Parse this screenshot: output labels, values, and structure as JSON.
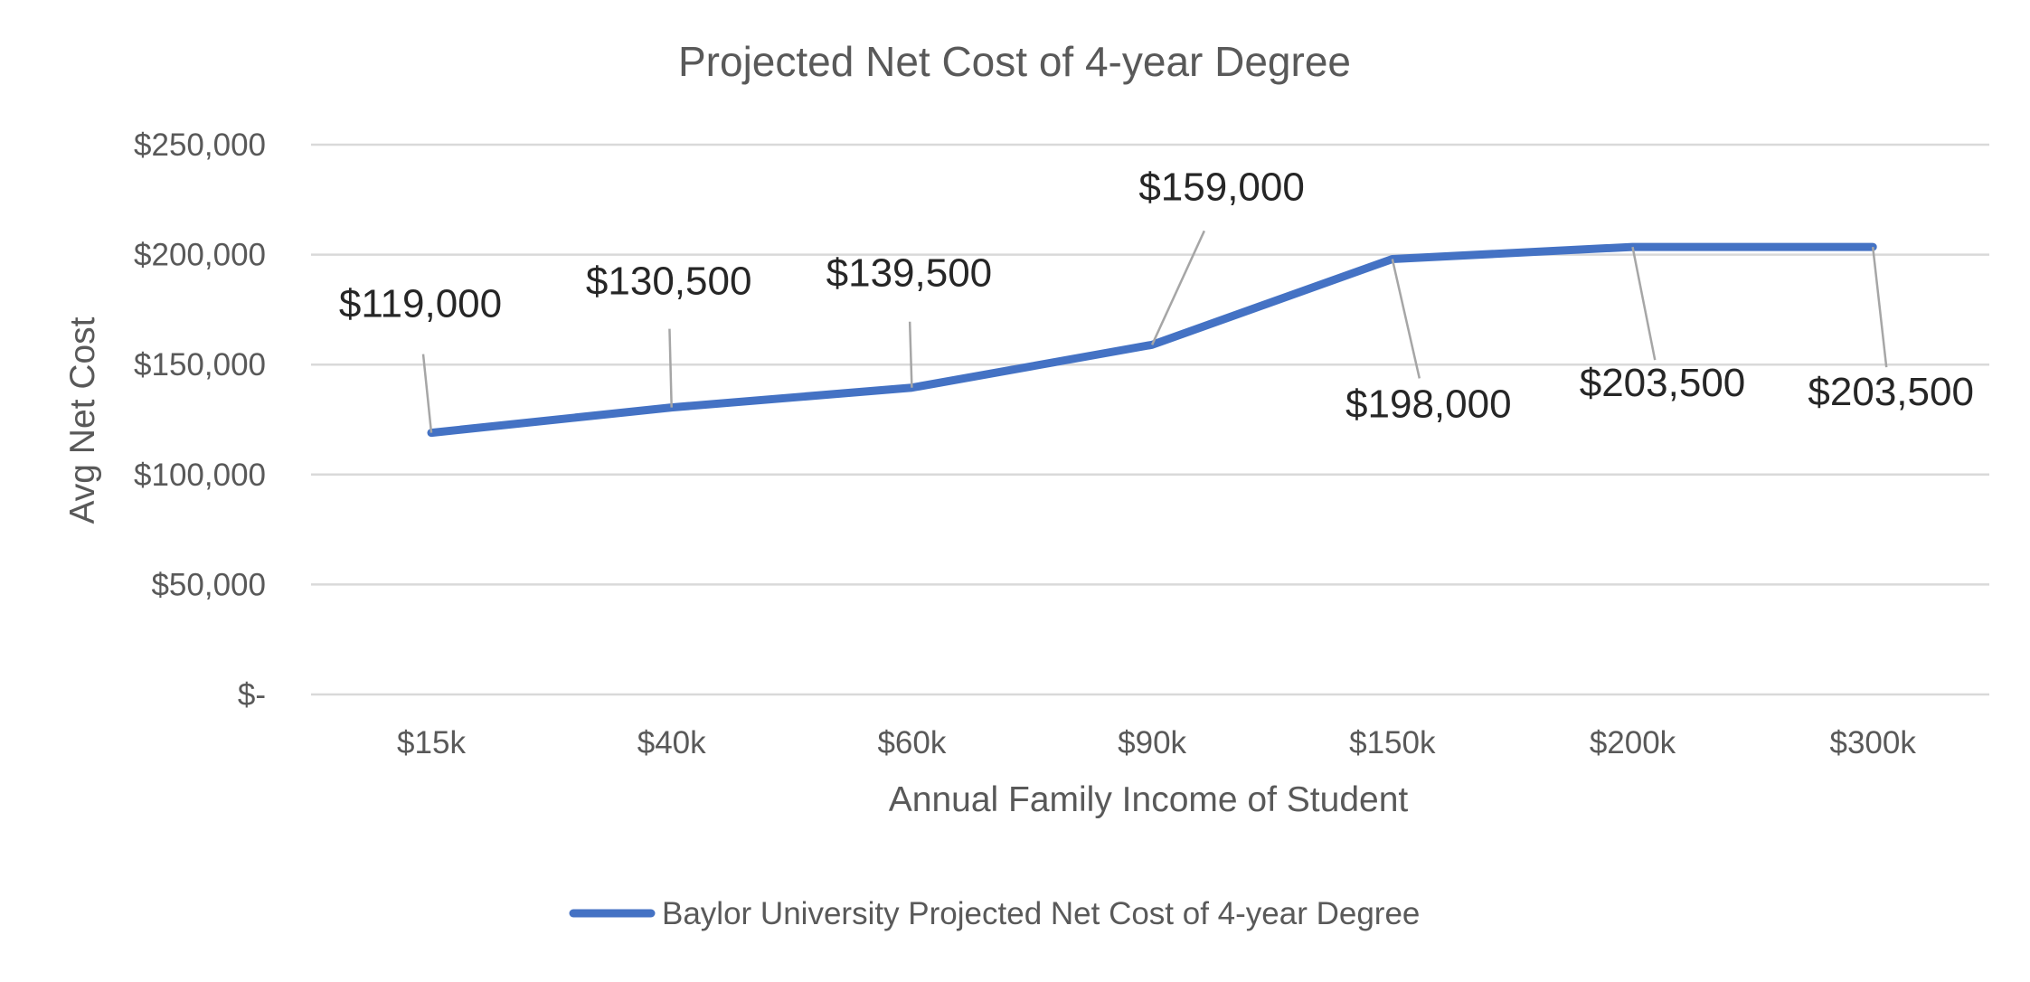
{
  "chart_data": {
    "type": "line",
    "title": "Projected Net Cost of 4-year Degree",
    "xlabel": "Annual Family Income of Student",
    "ylabel": "Avg Net Cost",
    "categories": [
      "$15k",
      "$40k",
      "$60k",
      "$90k",
      "$150k",
      "$200k",
      "$300k"
    ],
    "series": [
      {
        "name": "Baylor University Projected Net Cost of 4-year Degree",
        "values": [
          119000,
          130500,
          139500,
          159000,
          198000,
          203500,
          203500
        ],
        "color": "#4472C4"
      }
    ],
    "data_labels": [
      "$119,000",
      "$130,500",
      "$139,500",
      "$159,000",
      "$198,000",
      "$203,500",
      "$203,500"
    ],
    "ylim": [
      0,
      250000
    ],
    "yticks": [
      0,
      50000,
      100000,
      150000,
      200000,
      250000
    ],
    "ytick_labels": [
      "$-",
      "$50,000",
      "$100,000",
      "$150,000",
      "$200,000",
      "$250,000"
    ],
    "grid": true,
    "legend_position": "bottom"
  }
}
